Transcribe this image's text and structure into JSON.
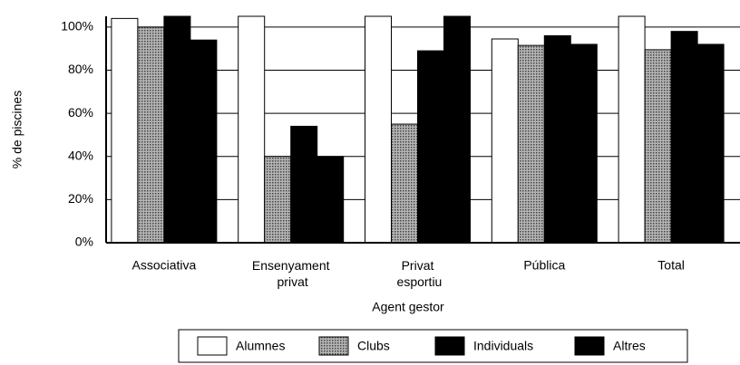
{
  "chart_data": {
    "type": "bar",
    "x_label": "Agent gestor",
    "y_label": "% de piscines",
    "categories": [
      "Associativa",
      "Ensenyament privat",
      "Privat esportiu",
      "Pública",
      "Total"
    ],
    "series": [
      {
        "name": "Alumnes",
        "color": "#ffffff",
        "values": [
          104,
          105,
          105,
          94.5,
          105
        ]
      },
      {
        "name": "Clubs",
        "color": "#8a8a8a",
        "values": [
          100,
          40,
          55,
          91.5,
          89.5
        ]
      },
      {
        "name": "Individuals",
        "color": "#000000",
        "values": [
          105,
          54,
          89,
          96,
          98
        ]
      },
      {
        "name": "Altres",
        "color": "#000000",
        "values": [
          94,
          40,
          105,
          92,
          92
        ]
      }
    ],
    "ylim": [
      0,
      105
    ],
    "yticks": [
      {
        "value": 0,
        "label": "0%"
      },
      {
        "value": 20,
        "label": "20%"
      },
      {
        "value": 40,
        "label": "40%"
      },
      {
        "value": 60,
        "label": "60%"
      },
      {
        "value": 80,
        "label": "80%"
      },
      {
        "value": 100,
        "label": "100%"
      }
    ],
    "grid": true,
    "legend": "bottom"
  }
}
